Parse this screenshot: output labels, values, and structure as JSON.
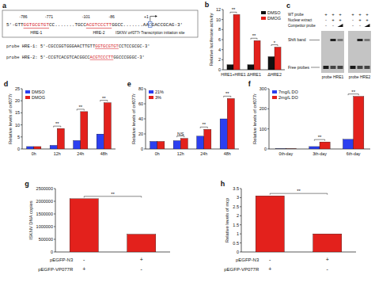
{
  "diagram": {
    "label": "a",
    "sequence": [
      {
        "text": "5'-GTT"
      },
      {
        "text": "GGTGCGTGT",
        "color": "#d4151b",
        "element": "HRE-1",
        "start": "-786",
        "end": "-771"
      },
      {
        "text": "CC.......TGCC"
      },
      {
        "text": "ACGTCCCTT",
        "color": "#d4151b",
        "element": "HRE-2",
        "start": "-101",
        "end": "-86"
      },
      {
        "text": "GGCC.......AA"
      },
      {
        "text": "C",
        "color": "#2f5fc4",
        "marker": "box",
        "element": "ISKNV orf077r Transcription initiation site",
        "start": "+1"
      },
      {
        "text": "GACCGCAG-3'"
      }
    ],
    "probes": [
      {
        "name": "probe HRE-1:",
        "segments": [
          {
            "text": "5'-CGCCGGTGGGAACTTGTT"
          },
          {
            "text": "GGTGCGTGT",
            "color": "#d4151b"
          },
          {
            "text": "CCTCCGCGC-3'"
          }
        ]
      },
      {
        "name": "probe HRE-2:",
        "segments": [
          {
            "text": "5'-CCGTCACGTCACGGCC"
          },
          {
            "text": "ACGTCCCTT",
            "color": "#d4151b"
          },
          {
            "text": "GGCCCGGGC-3'"
          }
        ]
      }
    ]
  },
  "gel": {
    "label": "c",
    "rows": [
      {
        "name": "WT probe",
        "values": [
          "+",
          "+",
          "+",
          "+",
          "+",
          "+"
        ]
      },
      {
        "name": "Nuclear extract",
        "values": [
          "-",
          "+",
          "+",
          "-",
          "+",
          "+"
        ]
      },
      {
        "name": "Competitor probe",
        "values": [
          "-",
          "-",
          null,
          "-",
          "-",
          null
        ]
      }
    ],
    "band_labels": [
      "Shift band",
      "Free probes"
    ],
    "probes": [
      "probe HRE1",
      "probe HRE2"
    ]
  },
  "chart_data": [
    {
      "label": "b",
      "type": "bar",
      "y_label": "Relative luciferase activity",
      "categories": [
        "HRE1+HRE1",
        "ΔHRE1",
        "ΔHRE2"
      ],
      "series": [
        {
          "name": "DMSO",
          "color": "#111111",
          "values": [
            1.0,
            1.0,
            2.6
          ]
        },
        {
          "name": "DMOG",
          "color": "#e3211c",
          "values": [
            11.0,
            5.8,
            4.5
          ]
        }
      ],
      "ylim": [
        0,
        12
      ],
      "yticks": [
        0,
        2,
        4,
        6,
        8,
        10,
        12
      ],
      "legend": "upper right",
      "significance": [
        "**",
        "**",
        "*"
      ]
    },
    {
      "label": "d",
      "type": "bar",
      "y_label": "Relative levels of orf077r",
      "categories": [
        "0h",
        "12h",
        "24h",
        "48h"
      ],
      "series": [
        {
          "name": "DMSO",
          "color": "#2b3ff0",
          "values": [
            1,
            1.5,
            3.5,
            6.2
          ]
        },
        {
          "name": "DMOG",
          "color": "#e3211c",
          "values": [
            1,
            8.5,
            15.5,
            19.2
          ]
        }
      ],
      "ylim": [
        0,
        25
      ],
      "yticks": [
        0,
        5,
        10,
        15,
        20,
        25
      ],
      "legend": "upper left",
      "significance": [
        null,
        "**",
        "**",
        "**"
      ]
    },
    {
      "label": "e",
      "type": "bar",
      "y_label": "Relative levels of orf077r",
      "categories": [
        "0h",
        "12h",
        "24h",
        "48h"
      ],
      "series": [
        {
          "name": "21%",
          "color": "#2b3ff0",
          "values": [
            10,
            11,
            17,
            40
          ]
        },
        {
          "name": "3%",
          "color": "#e3211c",
          "values": [
            10,
            14,
            26,
            67
          ]
        }
      ],
      "ylim": [
        0,
        80
      ],
      "yticks": [
        0,
        20,
        40,
        60,
        80
      ],
      "legend": "upper left",
      "significance": [
        null,
        "NS",
        "**",
        "**"
      ]
    },
    {
      "label": "f",
      "type": "bar",
      "y_label": "Relative levels of orf077r",
      "categories": [
        "0th-day",
        "3th-day",
        "6th-day"
      ],
      "series": [
        {
          "name": "7mg/L DO",
          "color": "#2b3ff0",
          "values": [
            1,
            12,
            48
          ]
        },
        {
          "name": "2mg/L DO",
          "color": "#e3211c",
          "values": [
            1,
            35,
            262
          ]
        }
      ],
      "ylim": [
        0,
        300
      ],
      "yticks": [
        0,
        100,
        200,
        300
      ],
      "legend": "upper left",
      "significance": [
        null,
        "**",
        "**"
      ]
    },
    {
      "label": "g",
      "type": "bar",
      "y_label": "ISKNV DNA copies",
      "categories": [
        null,
        null
      ],
      "series": [
        {
          "color": "#e3211c",
          "values": [
            2100000,
            700000
          ]
        }
      ],
      "ylim": [
        0,
        2500000
      ],
      "yticks": [
        0,
        500000,
        1000000,
        1500000,
        2000000,
        2500000
      ],
      "significance": "**",
      "x_table": [
        {
          "label": "pEGFP-N3",
          "values": [
            "-",
            "+"
          ]
        },
        {
          "label": "pEGFP-VP077R",
          "values": [
            "+",
            "-"
          ]
        }
      ]
    },
    {
      "label": "h",
      "type": "bar",
      "y_label": "Relative levels of mcp",
      "categories": [
        null,
        null
      ],
      "series": [
        {
          "color": "#e3211c",
          "values": [
            3.1,
            1.0
          ]
        }
      ],
      "ylim": [
        0,
        3.5
      ],
      "yticks": [
        0,
        0.5,
        1,
        1.5,
        2,
        2.5,
        3,
        3.5
      ],
      "significance": "**",
      "x_table": [
        {
          "label": "pEGFP-N3",
          "values": [
            "-",
            "+"
          ]
        },
        {
          "label": "pEGFP-VP077R",
          "values": [
            "+",
            "-"
          ]
        }
      ]
    }
  ]
}
